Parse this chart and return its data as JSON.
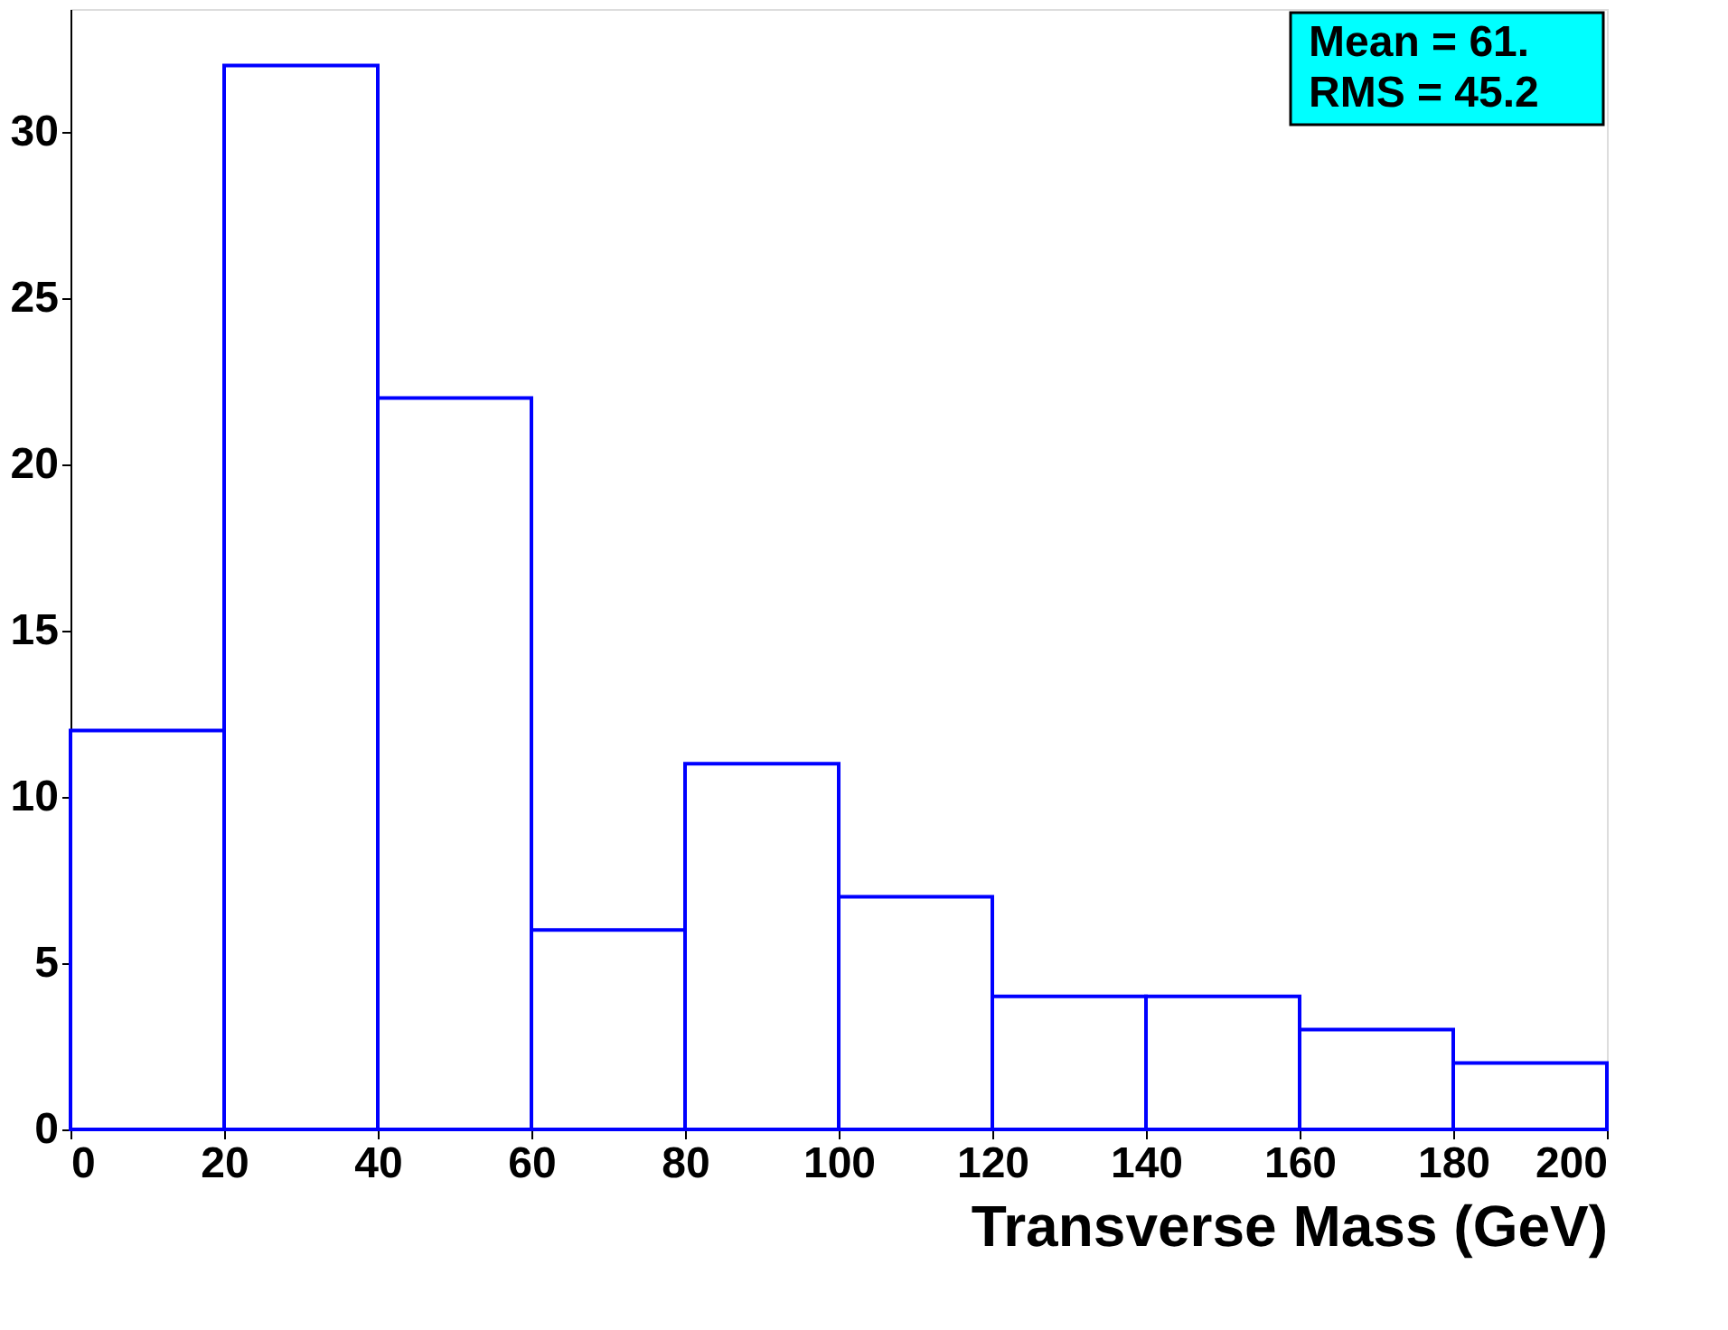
{
  "chart_data": {
    "type": "histogram",
    "xlabel": "Transverse Mass (GeV)",
    "bins": [
      0,
      20,
      40,
      60,
      80,
      100,
      120,
      140,
      160,
      180,
      200
    ],
    "values": [
      12,
      32,
      22,
      6,
      11,
      7,
      4,
      4,
      3,
      2
    ],
    "color": "#0000ff",
    "xlim": [
      0,
      200
    ],
    "xticks": [
      0,
      20,
      40,
      60,
      80,
      100,
      120,
      140,
      160,
      180,
      200
    ],
    "ylim": [
      0,
      33.7
    ],
    "yticks": [
      0,
      5,
      10,
      15,
      20,
      25,
      30
    ],
    "grid": false,
    "annotations": [
      "Mean = 61.",
      "RMS = 45.2"
    ]
  }
}
